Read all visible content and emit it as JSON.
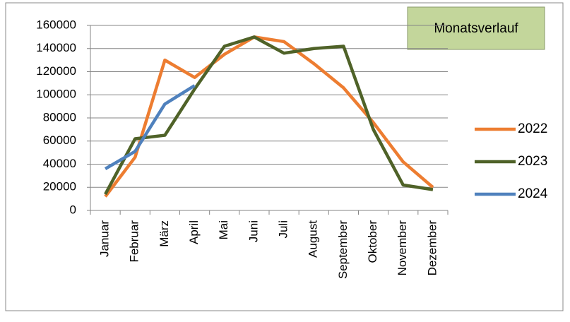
{
  "chart_data": {
    "type": "line",
    "title": "Monatsverlauf",
    "categories": [
      "Januar",
      "Februar",
      "März",
      "April",
      "Mai",
      "Juni",
      "Juli",
      "August",
      "September",
      "Oktober",
      "November",
      "Dezember"
    ],
    "series": [
      {
        "name": "2022",
        "color": "#ed7d31",
        "values": [
          12000,
          46000,
          130000,
          115000,
          135000,
          150000,
          146000,
          127000,
          106000,
          76000,
          42000,
          20000
        ]
      },
      {
        "name": "2023",
        "color": "#4f6228",
        "values": [
          14000,
          62000,
          65000,
          105000,
          142000,
          150000,
          136000,
          140000,
          142000,
          70000,
          22000,
          18000
        ]
      },
      {
        "name": "2024",
        "color": "#4f81bd",
        "values": [
          36000,
          51000,
          92000,
          108000,
          null,
          null,
          null,
          null,
          null,
          null,
          null,
          null
        ]
      }
    ],
    "ylim": [
      0,
      160000
    ],
    "yticks": [
      0,
      20000,
      40000,
      60000,
      80000,
      100000,
      120000,
      140000,
      160000
    ],
    "grid": true
  }
}
